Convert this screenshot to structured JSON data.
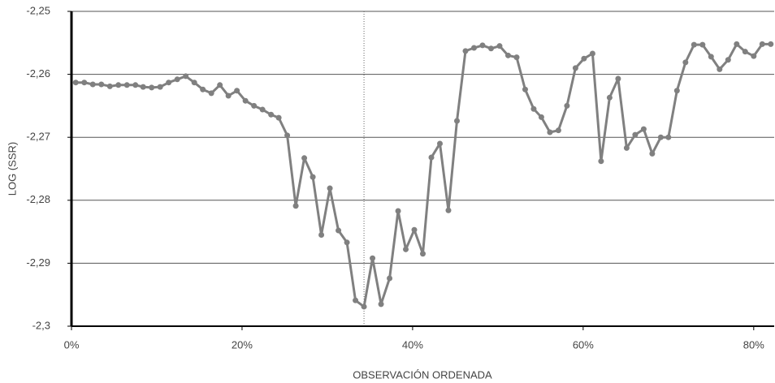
{
  "chart_data": {
    "type": "line",
    "y_label": "LOG (SSR)",
    "x_label": "OBSERVACIÓN ORDENADA",
    "xlim": [
      0,
      82.4
    ],
    "ylim": [
      -2.3,
      -2.25
    ],
    "xticks": [
      {
        "value": 0,
        "label": "0%"
      },
      {
        "value": 20,
        "label": "20%"
      },
      {
        "value": 40,
        "label": "40%"
      },
      {
        "value": 60,
        "label": "60%"
      },
      {
        "value": 80,
        "label": "80%"
      }
    ],
    "yticks": [
      {
        "value": -2.3,
        "label": "-2,3"
      },
      {
        "value": -2.29,
        "label": "-2,29"
      },
      {
        "value": -2.28,
        "label": "-2,28"
      },
      {
        "value": -2.27,
        "label": "-2,27"
      },
      {
        "value": -2.26,
        "label": "-2,26"
      },
      {
        "value": -2.25,
        "label": "-2,25"
      }
    ],
    "grid": true,
    "reference_x": 34.3,
    "x": [
      0.5,
      1.5,
      2.5,
      3.5,
      4.5,
      5.5,
      6.5,
      7.5,
      8.4,
      9.4,
      10.4,
      11.4,
      12.4,
      13.4,
      14.4,
      15.4,
      16.4,
      17.4,
      18.4,
      19.4,
      20.4,
      21.4,
      22.4,
      23.4,
      24.3,
      25.3,
      26.3,
      27.3,
      28.3,
      29.3,
      30.3,
      31.3,
      32.3,
      33.3,
      34.3,
      35.3,
      36.3,
      37.3,
      38.3,
      39.2,
      40.2,
      41.2,
      42.2,
      43.2,
      44.2,
      45.2,
      46.2,
      47.2,
      48.2,
      49.2,
      50.2,
      51.2,
      52.2,
      53.2,
      54.2,
      55.1,
      56.1,
      57.1,
      58.1,
      59.1,
      60.1,
      61.1,
      62.1,
      63.1,
      64.1,
      65.1,
      66.1,
      67.1,
      68.1,
      69.1,
      70.0,
      71.0,
      72.0,
      73.0,
      74.0,
      75.0,
      76.0,
      77.0,
      78.0,
      79.0,
      80.0,
      81.0,
      82.0
    ],
    "series": [
      {
        "color": "#808080",
        "values": [
          -2.2613,
          -2.2613,
          -2.2616,
          -2.2616,
          -2.2619,
          -2.2617,
          -2.2617,
          -2.2617,
          -2.262,
          -2.2621,
          -2.262,
          -2.2613,
          -2.2608,
          -2.2603,
          -2.2613,
          -2.2624,
          -2.263,
          -2.2617,
          -2.2634,
          -2.2626,
          -2.2642,
          -2.265,
          -2.2656,
          -2.2664,
          -2.2669,
          -2.2697,
          -2.2809,
          -2.2733,
          -2.2763,
          -2.2855,
          -2.2781,
          -2.2848,
          -2.2867,
          -2.2959,
          -2.2969,
          -2.2892,
          -2.2965,
          -2.2924,
          -2.2817,
          -2.2878,
          -2.2847,
          -2.2885,
          -2.2732,
          -2.271,
          -2.2816,
          -2.2674,
          -2.2563,
          -2.2558,
          -2.2554,
          -2.2559,
          -2.2555,
          -2.257,
          -2.2573,
          -2.2624,
          -2.2655,
          -2.2668,
          -2.2692,
          -2.2689,
          -2.265,
          -2.259,
          -2.2575,
          -2.2567,
          -2.2738,
          -2.2637,
          -2.2607,
          -2.2717,
          -2.2696,
          -2.2687,
          -2.2726,
          -2.27,
          -2.27,
          -2.2626,
          -2.2581,
          -2.2553,
          -2.2553,
          -2.2572,
          -2.2592,
          -2.2577,
          -2.2552,
          -2.2564,
          -2.2571,
          -2.2552,
          -2.2552
        ]
      }
    ]
  }
}
